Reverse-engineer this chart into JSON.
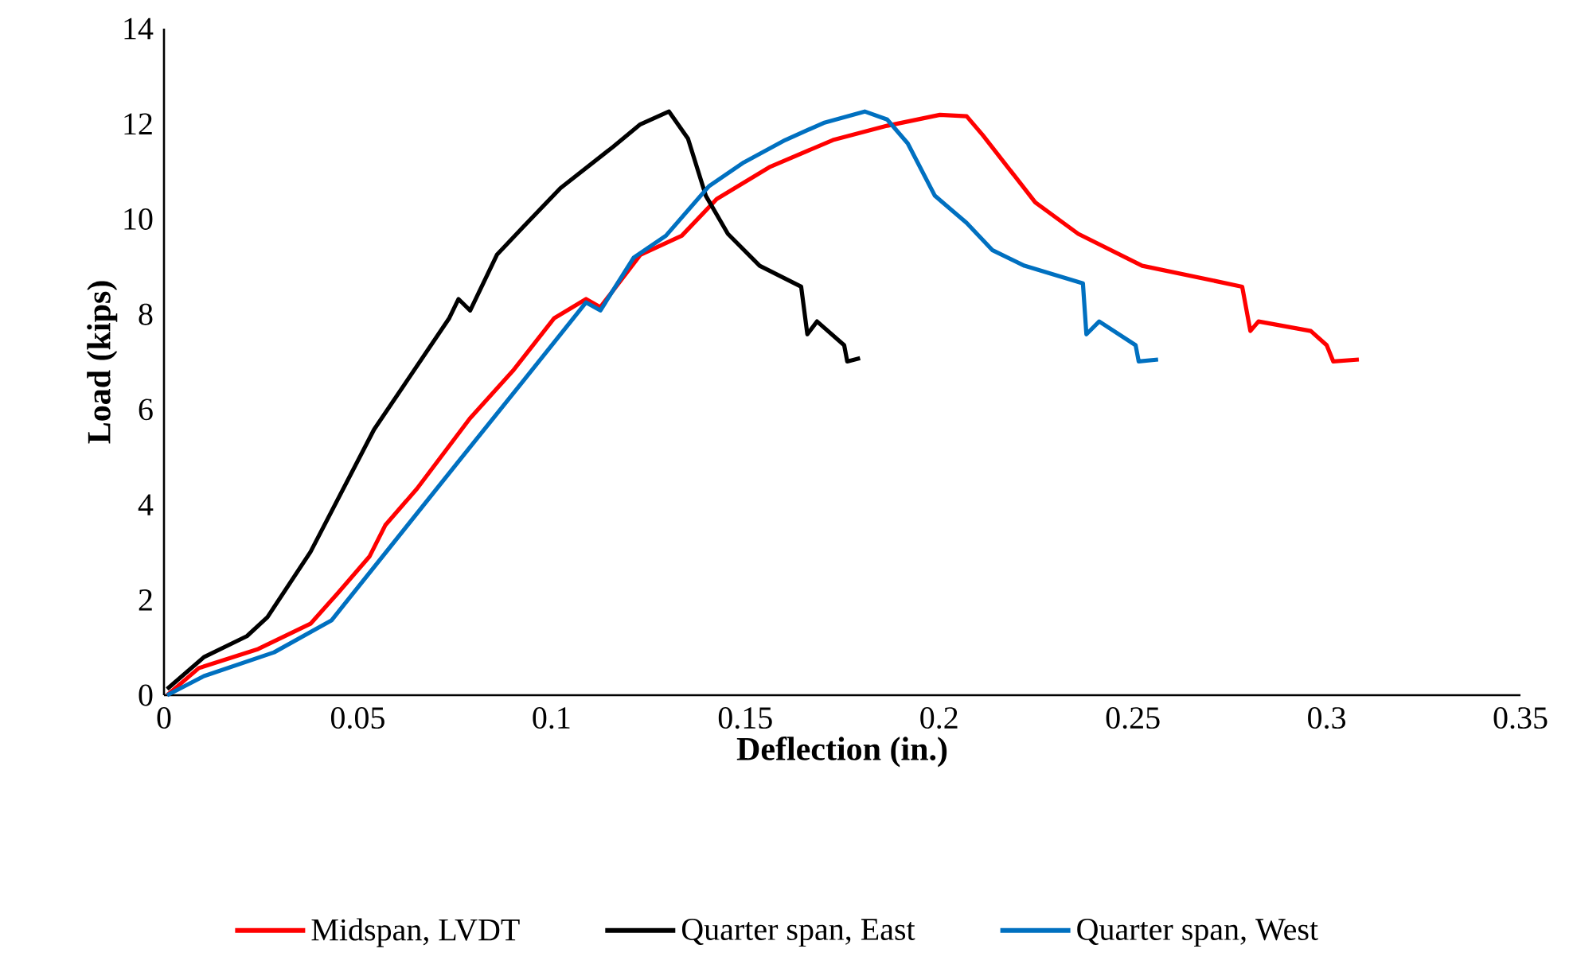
{
  "chart_data": {
    "type": "line",
    "xlabel": "Deflection (in.)",
    "ylabel": "Load (kips)",
    "xlim": [
      0,
      0.35
    ],
    "ylim": [
      0,
      14
    ],
    "xticks": [
      0,
      0.05,
      0.1,
      0.15,
      0.2,
      0.25,
      0.3,
      0.35
    ],
    "yticks": [
      0,
      2,
      4,
      6,
      8,
      10,
      12,
      14
    ],
    "grid": false,
    "legend": "bottom",
    "series": [
      {
        "name": "Midspan, LVDT",
        "color": "#ff0000",
        "x": [
          0.0008,
          0.009,
          0.0243,
          0.0378,
          0.0448,
          0.053,
          0.0571,
          0.0653,
          0.0789,
          0.09,
          0.1007,
          0.1089,
          0.1126,
          0.1229,
          0.1336,
          0.1426,
          0.1562,
          0.1726,
          0.1866,
          0.2002,
          0.2071,
          0.2113,
          0.2248,
          0.2359,
          0.2524,
          0.2782,
          0.2803,
          0.2824,
          0.2959,
          0.3,
          0.3017,
          0.3083
        ],
        "values": [
          0,
          0.57,
          0.97,
          1.5,
          2.14,
          2.91,
          3.57,
          4.34,
          5.81,
          6.81,
          7.92,
          8.32,
          8.15,
          9.25,
          9.65,
          10.42,
          11.09,
          11.66,
          11.96,
          12.19,
          12.16,
          11.76,
          10.35,
          9.69,
          9.02,
          8.58,
          7.65,
          7.85,
          7.65,
          7.35,
          7.01,
          7.05
        ]
      },
      {
        "name": "Quarter span, East",
        "color": "#000000",
        "x": [
          0.0008,
          0.0103,
          0.0214,
          0.0267,
          0.0378,
          0.0542,
          0.0625,
          0.0736,
          0.076,
          0.079,
          0.0859,
          0.0925,
          0.1023,
          0.1159,
          0.1229,
          0.1303,
          0.1352,
          0.1398,
          0.1455,
          0.1537,
          0.1644,
          0.166,
          0.1685,
          0.1755,
          0.1763,
          0.1796
        ],
        "values": [
          0.13,
          0.8,
          1.24,
          1.64,
          3.01,
          5.58,
          6.58,
          7.92,
          8.32,
          8.08,
          9.25,
          9.82,
          10.65,
          11.52,
          11.99,
          12.26,
          11.69,
          10.49,
          9.69,
          9.02,
          8.58,
          7.58,
          7.85,
          7.35,
          7.01,
          7.08
        ]
      },
      {
        "name": "Quarter span, West",
        "color": "#0070c0",
        "x": [
          0.0008,
          0.0103,
          0.0284,
          0.0432,
          0.0596,
          0.076,
          0.0925,
          0.1089,
          0.1126,
          0.1212,
          0.1295,
          0.1406,
          0.1496,
          0.1603,
          0.1702,
          0.1808,
          0.1866,
          0.1919,
          0.1989,
          0.2071,
          0.2137,
          0.222,
          0.2371,
          0.238,
          0.2413,
          0.2507,
          0.2515,
          0.2565
        ],
        "values": [
          0,
          0.4,
          0.9,
          1.57,
          3.24,
          4.91,
          6.58,
          8.25,
          8.08,
          9.19,
          9.65,
          10.69,
          11.19,
          11.66,
          12.02,
          12.26,
          12.09,
          11.59,
          10.49,
          9.92,
          9.35,
          9.02,
          8.65,
          7.58,
          7.85,
          7.35,
          7.01,
          7.05
        ]
      }
    ]
  }
}
